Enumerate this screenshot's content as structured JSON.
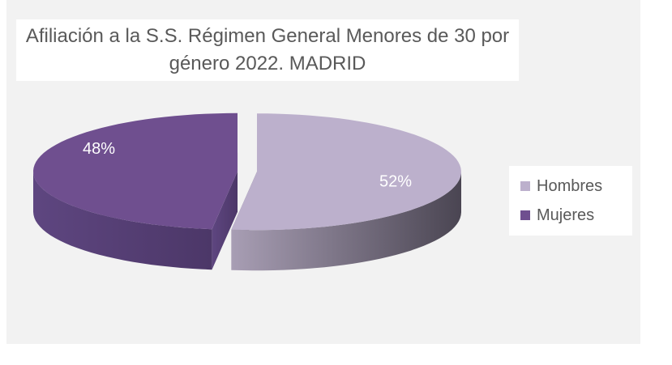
{
  "chart_data": {
    "type": "pie",
    "title": "Afiliación a la S.S. Régimen General Menores de 30 por género 2022. MADRID",
    "categories": [
      "Hombres",
      "Mujeres"
    ],
    "values": [
      52,
      48
    ],
    "value_labels": [
      "52%",
      "48%"
    ],
    "colors": [
      "#bcb0cc",
      "#6f4f8f"
    ],
    "legend": "right"
  }
}
